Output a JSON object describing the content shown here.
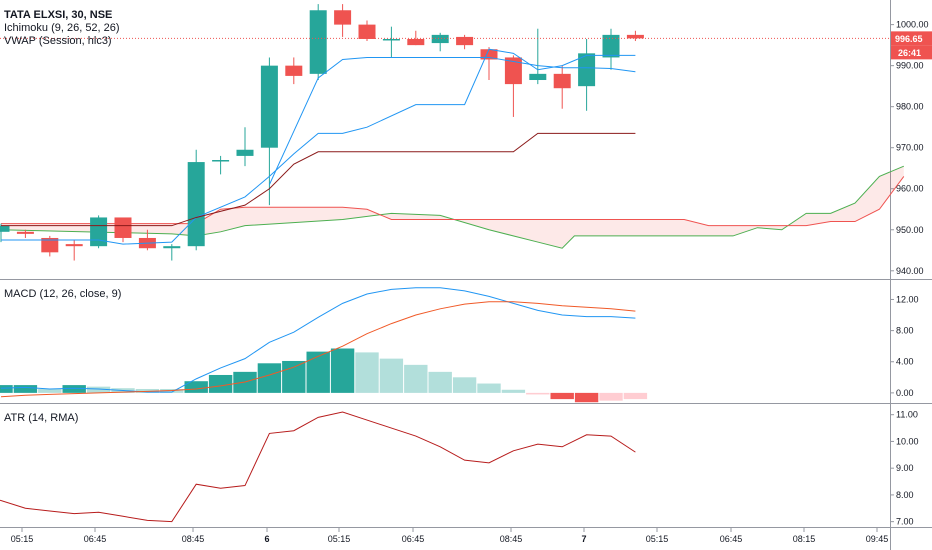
{
  "header": {
    "symbol": "TATA ELXSI, 30, NSE",
    "ichimoku_label": "Ichimoku (9, 26, 52, 26)",
    "vwap_label": "VWAP (Session, hlc3)"
  },
  "price_tag": {
    "value": "996.65",
    "countdown": "26:41",
    "level": 996.65
  },
  "colors": {
    "bull": "#26a69a",
    "bear": "#ef5350",
    "conversion": "#2196f3",
    "base": "#8b1a1a",
    "span_a": "#4caf50",
    "span_b": "#ef5350",
    "macd": "#2196f3",
    "signal": "#f05a28",
    "hist_up_strong": "#26a69a",
    "hist_up_weak": "#b2dfdb",
    "hist_down_strong": "#ef5350",
    "hist_down_weak": "#ffcdd2",
    "atr": "#b71c1c",
    "axis_text": "#131722",
    "grid": "#e0e3eb"
  },
  "macd_panel": {
    "label": "MACD (12, 26, close, 9)"
  },
  "atr_panel": {
    "label": "ATR (14, RMA)"
  },
  "chart_data": [
    {
      "type": "candlestick",
      "pane": "price",
      "ylim": [
        938,
        1006
      ],
      "yticks": [
        940,
        950,
        960,
        970,
        980,
        990,
        1000
      ],
      "ytick_labels": [
        "940.00",
        "950.00",
        "960.00",
        "970.00",
        "980.00",
        "990.00",
        "1000.00"
      ],
      "xticks": [
        "05:15",
        "06:45",
        "08:45",
        "6",
        "05:15",
        "06:45",
        "08:45",
        "7",
        "05:15",
        "06:45",
        "08:15",
        "09:45"
      ],
      "candles": [
        {
          "o": 949.5,
          "h": 951.5,
          "l": 947,
          "c": 951
        },
        {
          "o": 949.5,
          "h": 950,
          "l": 948,
          "c": 949
        },
        {
          "o": 948,
          "h": 948.5,
          "l": 943.5,
          "c": 944.5
        },
        {
          "o": 946.5,
          "h": 947.5,
          "l": 942.5,
          "c": 946
        },
        {
          "o": 946,
          "h": 953.5,
          "l": 945.5,
          "c": 953
        },
        {
          "o": 953,
          "h": 953,
          "l": 947,
          "c": 948
        },
        {
          "o": 948,
          "h": 950,
          "l": 945,
          "c": 945.5
        },
        {
          "o": 945.5,
          "h": 946.5,
          "l": 942.5,
          "c": 946
        },
        {
          "o": 946,
          "h": 969.5,
          "l": 945,
          "c": 966.5
        },
        {
          "o": 967,
          "h": 968,
          "l": 963.5,
          "c": 967
        },
        {
          "o": 968,
          "h": 975,
          "l": 965.5,
          "c": 969.5
        },
        {
          "o": 970,
          "h": 992,
          "l": 956,
          "c": 990
        },
        {
          "o": 990,
          "h": 992,
          "l": 985.5,
          "c": 987.5
        },
        {
          "o": 988,
          "h": 1005,
          "l": 986.5,
          "c": 1003.5
        },
        {
          "o": 1003.5,
          "h": 1005,
          "l": 997,
          "c": 1000
        },
        {
          "o": 1000,
          "h": 1001,
          "l": 996,
          "c": 996.5
        },
        {
          "o": 996.5,
          "h": 999.5,
          "l": 992,
          "c": 996.5
        },
        {
          "o": 996.5,
          "h": 998.5,
          "l": 995,
          "c": 995
        },
        {
          "o": 995.5,
          "h": 998,
          "l": 993.5,
          "c": 997.5
        },
        {
          "o": 997,
          "h": 997.5,
          "l": 994,
          "c": 995
        },
        {
          "o": 994,
          "h": 994.5,
          "l": 986.5,
          "c": 991.5
        },
        {
          "o": 992,
          "h": 992.5,
          "l": 977.5,
          "c": 985.5
        },
        {
          "o": 986.5,
          "h": 999,
          "l": 985.5,
          "c": 988
        },
        {
          "o": 988,
          "h": 990,
          "l": 979.5,
          "c": 984.5
        },
        {
          "o": 985,
          "h": 996.5,
          "l": 979,
          "c": 993
        },
        {
          "o": 992,
          "h": 999,
          "l": 989,
          "c": 997.5
        },
        {
          "o": 997.5,
          "h": 998.5,
          "l": 996,
          "c": 996.65
        }
      ],
      "series": [
        {
          "key": "conversion",
          "points": [
            [
              0,
              947.5
            ],
            [
              4,
              947.5
            ],
            [
              5,
              946.5
            ],
            [
              7,
              947
            ],
            [
              8,
              953
            ],
            [
              10,
              958
            ],
            [
              11,
              963
            ],
            [
              12,
              968.5
            ],
            [
              13,
              973.5
            ],
            [
              14,
              973.5
            ],
            [
              15,
              975
            ],
            [
              17,
              980.5
            ],
            [
              18,
              980.5
            ],
            [
              19,
              980.5
            ],
            [
              20,
              994
            ],
            [
              21,
              993
            ],
            [
              22,
              989
            ],
            [
              23,
              990
            ],
            [
              24,
              992.5
            ],
            [
              26,
              992.5
            ]
          ]
        },
        {
          "key": "base",
          "points": [
            [
              0,
              951
            ],
            [
              7,
              951
            ],
            [
              8,
              953
            ],
            [
              10,
              956
            ],
            [
              11,
              960
            ],
            [
              12,
              966
            ],
            [
              13,
              969
            ],
            [
              14,
              969
            ],
            [
              21,
              969
            ],
            [
              22,
              973.5
            ],
            [
              23,
              973.5
            ],
            [
              26,
              973.5
            ]
          ]
        },
        {
          "key": "vwap",
          "points": [
            [
              11,
              961
            ],
            [
              12,
              974
            ],
            [
              13,
              987
            ],
            [
              14,
              991.5
            ],
            [
              15,
              992
            ],
            [
              20,
              992
            ],
            [
              21,
              991
            ],
            [
              22,
              990
            ],
            [
              23,
              989.5
            ],
            [
              24,
              989.5
            ],
            [
              25,
              989.3
            ],
            [
              26,
              988.5
            ]
          ]
        }
      ],
      "cloud": {
        "span_a": [
          [
            0,
            950
          ],
          [
            7,
            949
          ],
          [
            8,
            948.5
          ],
          [
            9,
            949.5
          ],
          [
            10,
            951
          ],
          [
            14,
            952.5
          ],
          [
            16,
            954
          ],
          [
            18,
            953.5
          ],
          [
            20,
            950
          ],
          [
            22,
            947
          ],
          [
            23,
            945.5
          ],
          [
            23.5,
            948.5
          ],
          [
            29,
            948.5
          ],
          [
            30,
            948.5
          ],
          [
            31,
            950.5
          ],
          [
            32,
            950
          ],
          [
            33,
            954
          ],
          [
            34,
            954
          ],
          [
            35,
            956.5
          ],
          [
            36,
            963
          ],
          [
            37,
            965.5
          ]
        ],
        "span_b": [
          [
            0,
            951.5
          ],
          [
            7,
            951.5
          ],
          [
            8,
            951.5
          ],
          [
            9,
            955
          ],
          [
            10,
            955.5
          ],
          [
            14,
            955.5
          ],
          [
            15,
            955
          ],
          [
            16,
            952.5
          ],
          [
            28,
            952.5
          ],
          [
            29,
            951
          ],
          [
            33,
            951
          ],
          [
            34,
            952
          ],
          [
            35,
            952
          ],
          [
            36,
            955
          ],
          [
            37,
            963
          ]
        ]
      }
    },
    {
      "type": "macd",
      "pane": "macd",
      "ylim": [
        -1.3,
        14.5
      ],
      "yticks": [
        0,
        4,
        8,
        12
      ],
      "ytick_labels": [
        "0.00",
        "4.00",
        "8.00",
        "12.00"
      ],
      "histogram": [
        1,
        1,
        0.5,
        1,
        0.8,
        0.6,
        0.5,
        0.5,
        1.5,
        2.3,
        2.7,
        3.8,
        4.1,
        5.3,
        5.7,
        5.2,
        4.4,
        3.6,
        2.7,
        2.0,
        1.2,
        0.4,
        -0.2,
        -0.8,
        -1.2,
        -1.0,
        -0.8
      ],
      "hist_colors": [
        "strong",
        "strong",
        "weak",
        "strong",
        "weak",
        "weak",
        "weak",
        "weak",
        "strong",
        "strong",
        "strong",
        "strong",
        "strong",
        "strong",
        "strong",
        "weak",
        "weak",
        "weak",
        "weak",
        "weak",
        "weak",
        "weak",
        "weak",
        "strong",
        "strong",
        "weak",
        "weak"
      ],
      "macd": [
        0.6,
        0.7,
        0.5,
        0.6,
        0.5,
        0.3,
        0.1,
        0.1,
        1.8,
        3.2,
        4.4,
        6.5,
        7.8,
        9.7,
        11.5,
        12.7,
        13.3,
        13.5,
        13.5,
        13.1,
        12.4,
        11.5,
        10.6,
        10.0,
        9.8,
        9.8,
        9.6
      ],
      "signal": [
        -0.5,
        -0.3,
        -0.2,
        -0.1,
        0.0,
        0.1,
        0.2,
        0.3,
        0.5,
        0.9,
        1.4,
        2.3,
        3.3,
        4.7,
        6.0,
        7.6,
        8.9,
        10.0,
        10.8,
        11.4,
        11.7,
        11.7,
        11.5,
        11.2,
        11.0,
        10.8,
        10.5
      ]
    },
    {
      "type": "line",
      "pane": "atr",
      "ylim": [
        6.8,
        11.4
      ],
      "yticks": [
        7,
        8,
        9,
        10,
        11
      ],
      "ytick_labels": [
        "7.00",
        "8.00",
        "9.00",
        "10.00",
        "11.00"
      ],
      "values": [
        7.8,
        7.5,
        7.4,
        7.3,
        7.35,
        7.2,
        7.05,
        7.0,
        8.4,
        8.25,
        8.35,
        10.3,
        10.4,
        10.9,
        11.1,
        10.8,
        10.5,
        10.2,
        9.8,
        9.3,
        9.2,
        9.65,
        9.9,
        9.8,
        10.25,
        10.2,
        9.6
      ]
    }
  ]
}
